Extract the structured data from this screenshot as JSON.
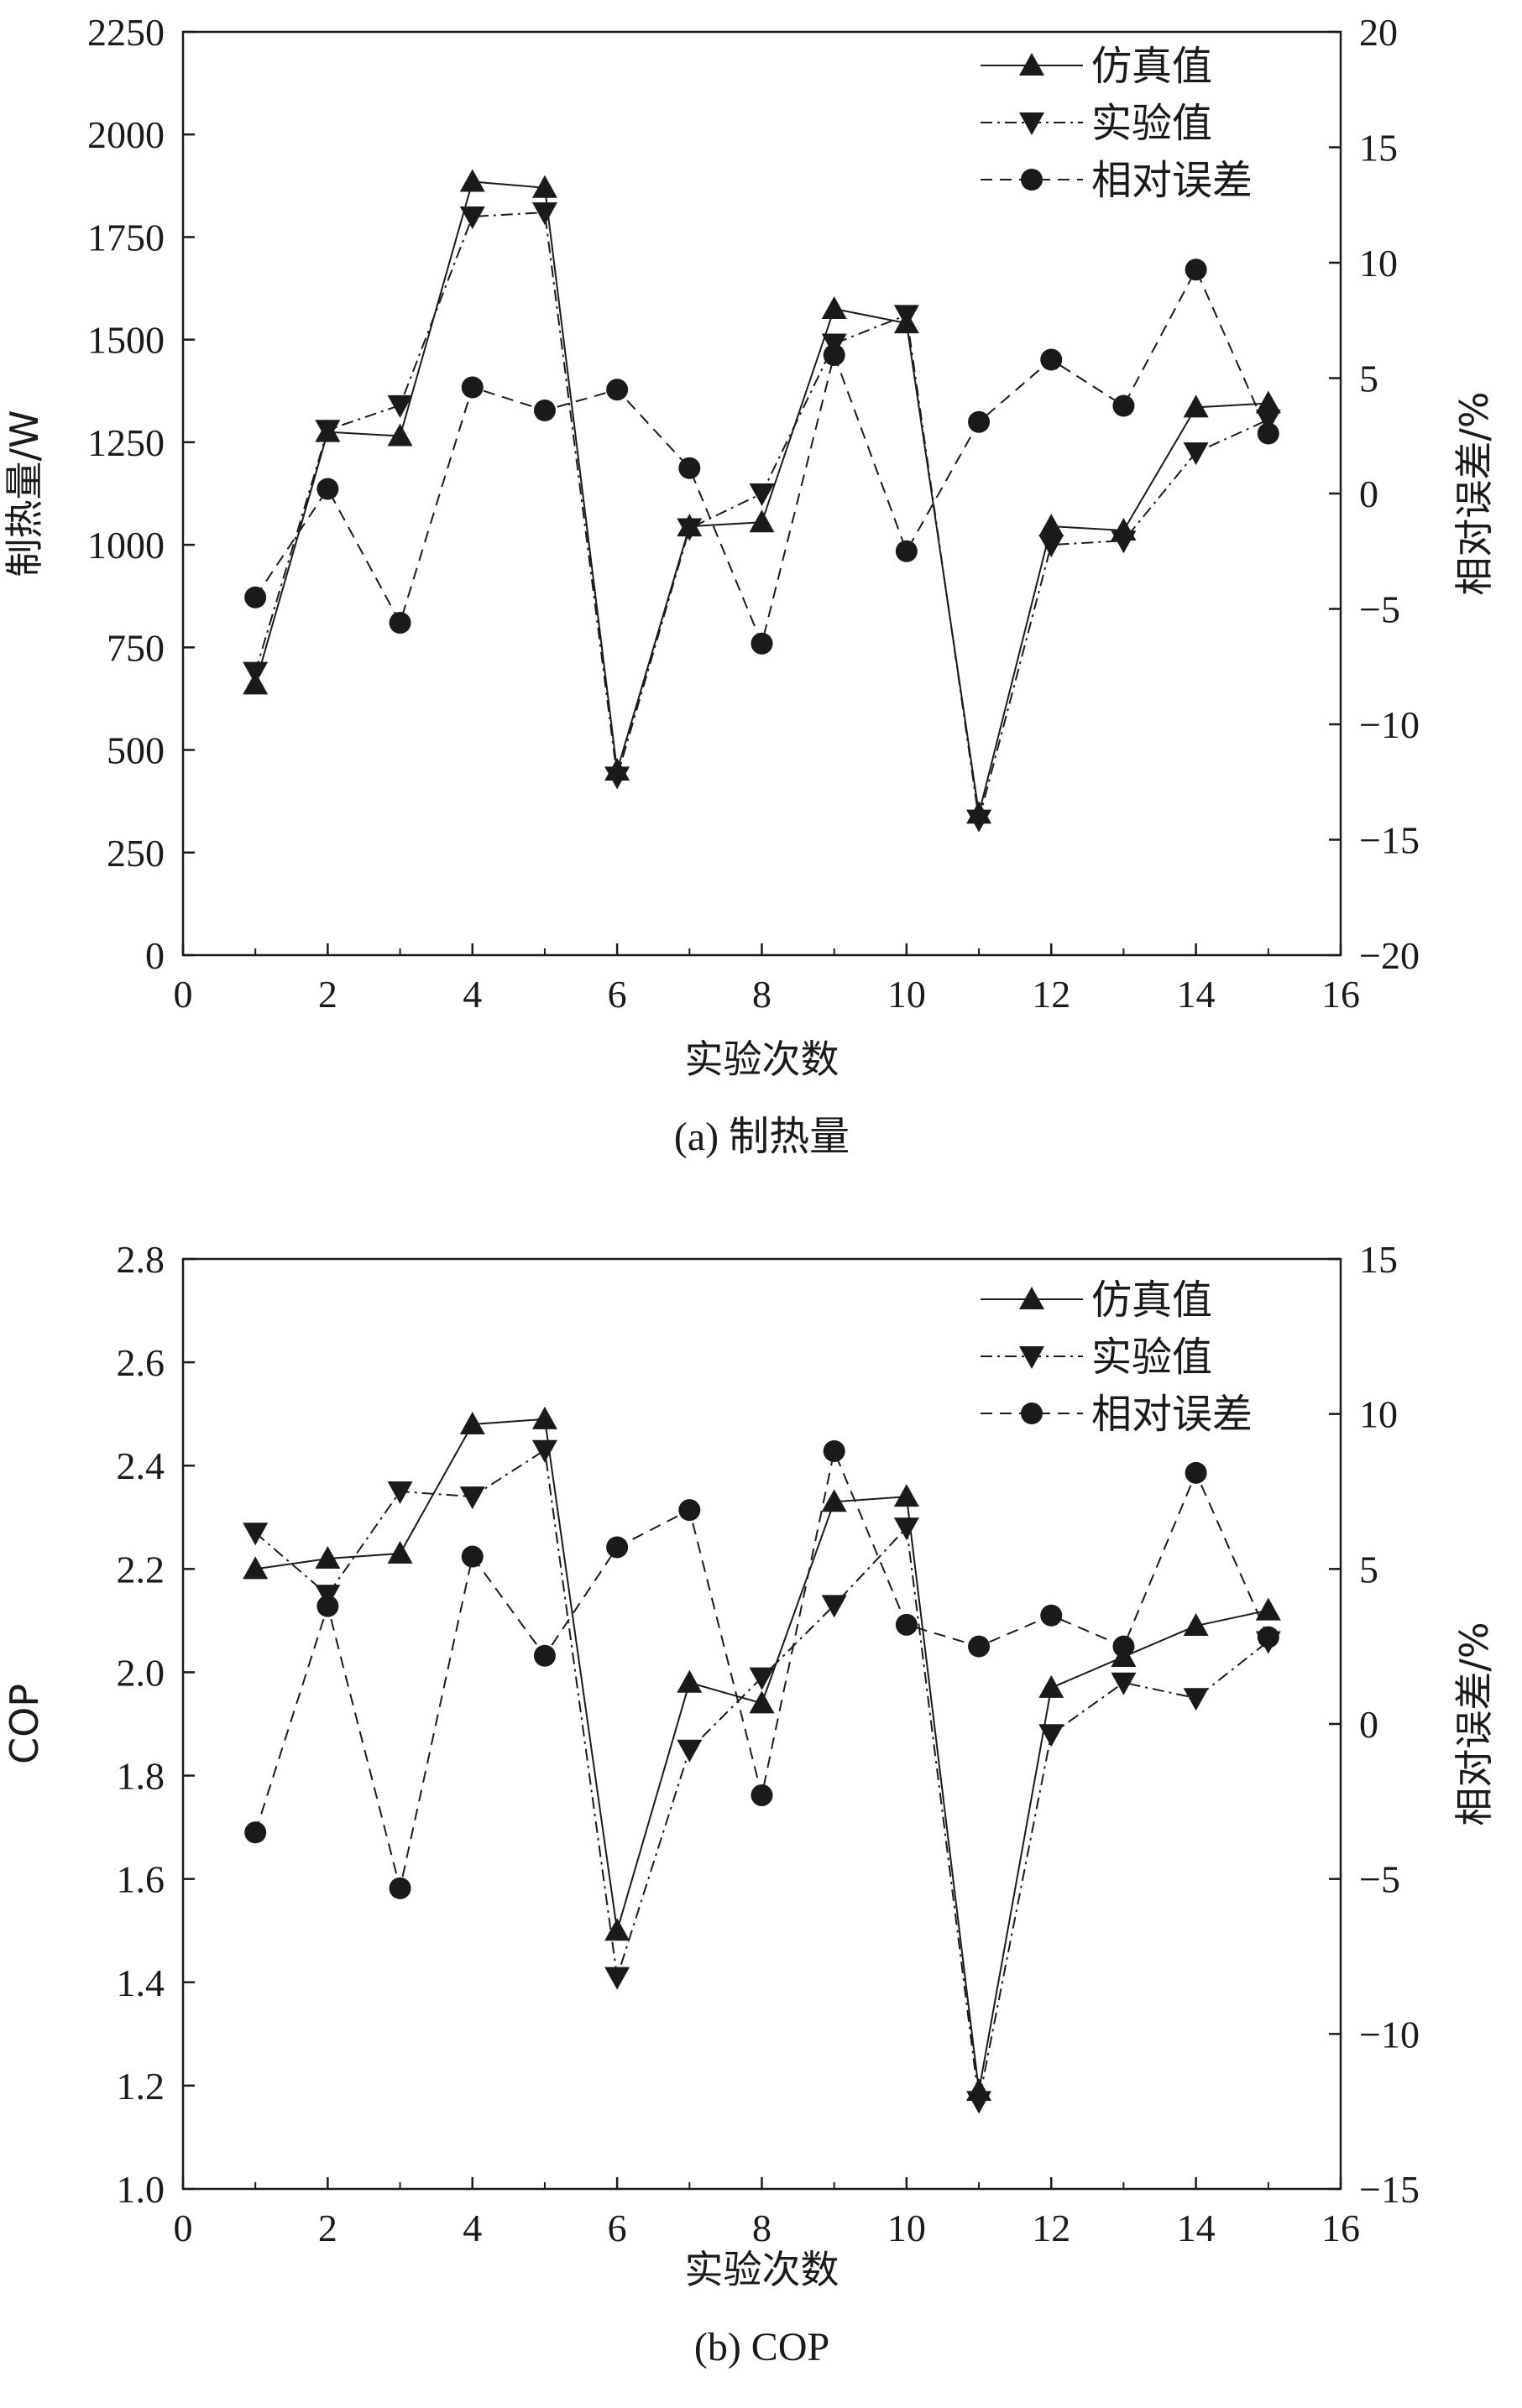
{
  "chart_data": [
    {
      "id": "a",
      "type": "line",
      "caption": "(a) 制热量",
      "xlabel": "实验次数",
      "ylabel": "制热量/W",
      "y2label": "相对误差/%",
      "xlim": [
        0,
        16
      ],
      "ylim": [
        0,
        2250
      ],
      "y2lim": [
        -20,
        20
      ],
      "xticks": [
        0,
        2,
        4,
        6,
        8,
        10,
        12,
        14,
        16
      ],
      "yticks": [
        0,
        250,
        500,
        750,
        1000,
        1250,
        1500,
        1750,
        2000,
        2250
      ],
      "y2ticks": [
        -20,
        -15,
        -10,
        -5,
        0,
        5,
        10,
        15,
        20
      ],
      "x": [
        1,
        2,
        3,
        4,
        5,
        6,
        7,
        8,
        9,
        10,
        11,
        12,
        13,
        14,
        15
      ],
      "series": [
        {
          "name": "仿真值",
          "axis": "left",
          "marker": "triangle-up",
          "dash": "solid",
          "values": [
            660,
            1275,
            1265,
            1885,
            1870,
            450,
            1045,
            1055,
            1575,
            1540,
            345,
            1045,
            1035,
            1335,
            1345
          ]
        },
        {
          "name": "实验值",
          "axis": "left",
          "marker": "triangle-down",
          "dash": "dashdot",
          "values": [
            690,
            1280,
            1340,
            1800,
            1810,
            435,
            1040,
            1125,
            1490,
            1560,
            330,
            1000,
            1010,
            1225,
            1305
          ]
        },
        {
          "name": "相对误差",
          "axis": "right",
          "marker": "circle",
          "dash": "dashed",
          "values": [
            -4.5,
            0.2,
            -5.6,
            4.6,
            3.6,
            4.5,
            1.1,
            -6.5,
            6.0,
            -2.5,
            3.1,
            5.8,
            3.8,
            9.7,
            2.6
          ]
        }
      ],
      "legend": "top-right"
    },
    {
      "id": "b",
      "type": "line",
      "caption": "(b) COP",
      "xlabel": "实验次数",
      "ylabel": "COP",
      "y2label": "相对误差/%",
      "xlim": [
        0,
        16
      ],
      "ylim": [
        1.0,
        2.8
      ],
      "y2lim": [
        -15,
        15
      ],
      "xticks": [
        0,
        2,
        4,
        6,
        8,
        10,
        12,
        14,
        16
      ],
      "yticks": [
        "1.0",
        "1.2",
        "1.4",
        "1.6",
        "1.8",
        "2.0",
        "2.2",
        "2.4",
        "2.6",
        "2.8"
      ],
      "y2ticks": [
        -15,
        -10,
        -5,
        0,
        5,
        10,
        15
      ],
      "x": [
        1,
        2,
        3,
        4,
        5,
        6,
        7,
        8,
        9,
        10,
        11,
        12,
        13,
        14,
        15
      ],
      "series": [
        {
          "name": "仿真值",
          "axis": "left",
          "marker": "triangle-up",
          "dash": "solid",
          "values": [
            2.2,
            2.22,
            2.23,
            2.48,
            2.49,
            1.5,
            1.98,
            1.94,
            2.33,
            2.34,
            1.19,
            1.97,
            2.03,
            2.09,
            2.12
          ]
        },
        {
          "name": "实验值",
          "axis": "left",
          "marker": "triangle-down",
          "dash": "dashdot",
          "values": [
            2.27,
            2.15,
            2.35,
            2.34,
            2.43,
            1.41,
            1.85,
            1.99,
            2.13,
            2.28,
            1.17,
            1.88,
            1.98,
            1.95,
            2.06
          ]
        },
        {
          "name": "相对误差",
          "axis": "right",
          "marker": "circle",
          "dash": "dashed",
          "values": [
            -3.5,
            3.8,
            -5.3,
            5.4,
            2.2,
            5.7,
            6.9,
            -2.3,
            8.8,
            3.2,
            2.5,
            3.5,
            2.5,
            8.1,
            2.8
          ]
        }
      ],
      "legend": "top-right"
    }
  ]
}
